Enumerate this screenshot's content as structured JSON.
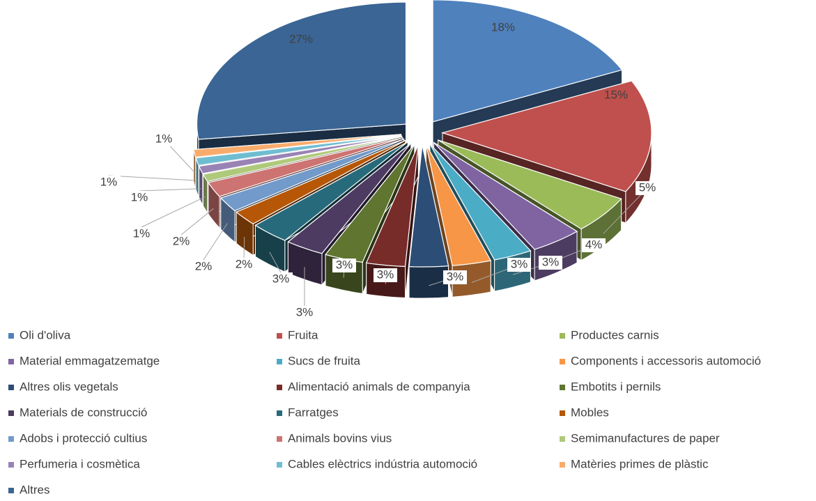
{
  "chart_data": {
    "type": "pie",
    "categories": [
      "Oli d'oliva",
      "Fruita",
      "Productes carnis",
      "Material emmagatzematge",
      "Sucs de fruita",
      "Components i accessoris automoció",
      "Altres olis vegetals",
      "Alimentació animals de companyia",
      "Embotits i pernils",
      "Materials de construcció",
      "Farratges",
      "Mobles",
      "Adobs i protecció cultius",
      "Animals bovins vius",
      "Semimanufactures de paper",
      "Perfumeria i cosmètica",
      "Cables elèctrics indústria automoció",
      "Matèries primes de plàstic",
      "Altres"
    ],
    "values": [
      18,
      15,
      5,
      4,
      3,
      3,
      3,
      3,
      3,
      3,
      3,
      2,
      2,
      2,
      1,
      1,
      1,
      1,
      27
    ],
    "value_labels": [
      "18%",
      "15%",
      "5%",
      "4%",
      "3%",
      "3%",
      "3%",
      "3%",
      "3%",
      "3%",
      "3%",
      "2%",
      "2%",
      "2%",
      "1%",
      "1%",
      "1%",
      "1%",
      "27%"
    ],
    "colors": [
      "#4f81bd",
      "#c0504d",
      "#9bbb59",
      "#8064a2",
      "#4bacc6",
      "#f79646",
      "#2c4d75",
      "#772c2a",
      "#5f7530",
      "#4d3b62",
      "#276a7c",
      "#b65708",
      "#729aca",
      "#cd7371",
      "#afc97a",
      "#9983b5",
      "#6fbdd1",
      "#f9ab6b",
      "#3a6594"
    ],
    "legend": "bottom"
  }
}
